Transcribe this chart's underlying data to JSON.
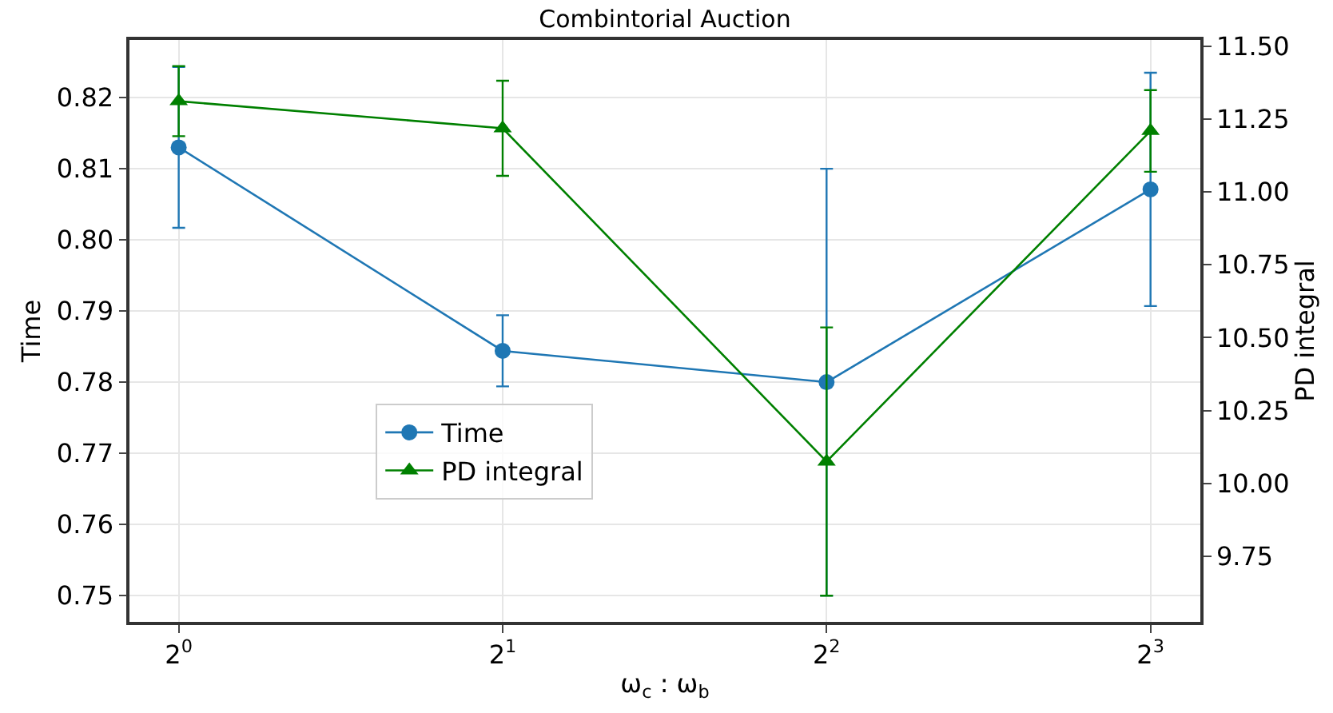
{
  "chart_data": {
    "type": "line",
    "title": "Combintorial Auction",
    "xlabel": "ω$_{c}$ : ω$_{b}$",
    "ylabel": "Time",
    "y2label": "PD integral",
    "x": [
      1,
      2,
      4,
      8
    ],
    "log": "x",
    "xlim": [
      0.9,
      8.9
    ],
    "xticks": [
      {
        "value": 1,
        "label": "2$^{0}$"
      },
      {
        "value": 2,
        "label": "2$^{1}$"
      },
      {
        "value": 4,
        "label": "2$^{2}$"
      },
      {
        "value": 8,
        "label": "2$^{3}$"
      }
    ],
    "ylim": [
      0.7463,
      0.8281
    ],
    "yticks": [
      0.75,
      0.76,
      0.77,
      0.78,
      0.79,
      {
        "value": 0.8,
        "label": "0.80"
      },
      0.81,
      0.82
    ],
    "y2lim": [
      9.525,
      11.521
    ],
    "y2ticks": [
      9.75,
      {
        "value": 10,
        "label": "10.00"
      },
      10.25,
      {
        "value": 10.5,
        "label": "10.50"
      },
      10.75,
      {
        "value": 11,
        "label": "11.00"
      },
      11.25,
      {
        "value": 11.5,
        "label": "11.50"
      }
    ],
    "series": [
      {
        "name": "Time",
        "color": "#1f77b4",
        "marker": "circle",
        "values": [
          0.813,
          0.7844,
          0.78,
          0.8071
        ],
        "errors": [
          0.0113,
          0.005,
          0.03,
          0.0164
        ]
      },
      {
        "name": "PD integral",
        "color": "#008000",
        "marker": "triangle",
        "axis": "y2",
        "values": [
          11.311,
          11.218,
          10.075,
          11.209
        ],
        "errors": [
          0.12,
          0.163,
          0.46,
          0.14
        ]
      }
    ],
    "grid": true,
    "legend": "center left"
  }
}
